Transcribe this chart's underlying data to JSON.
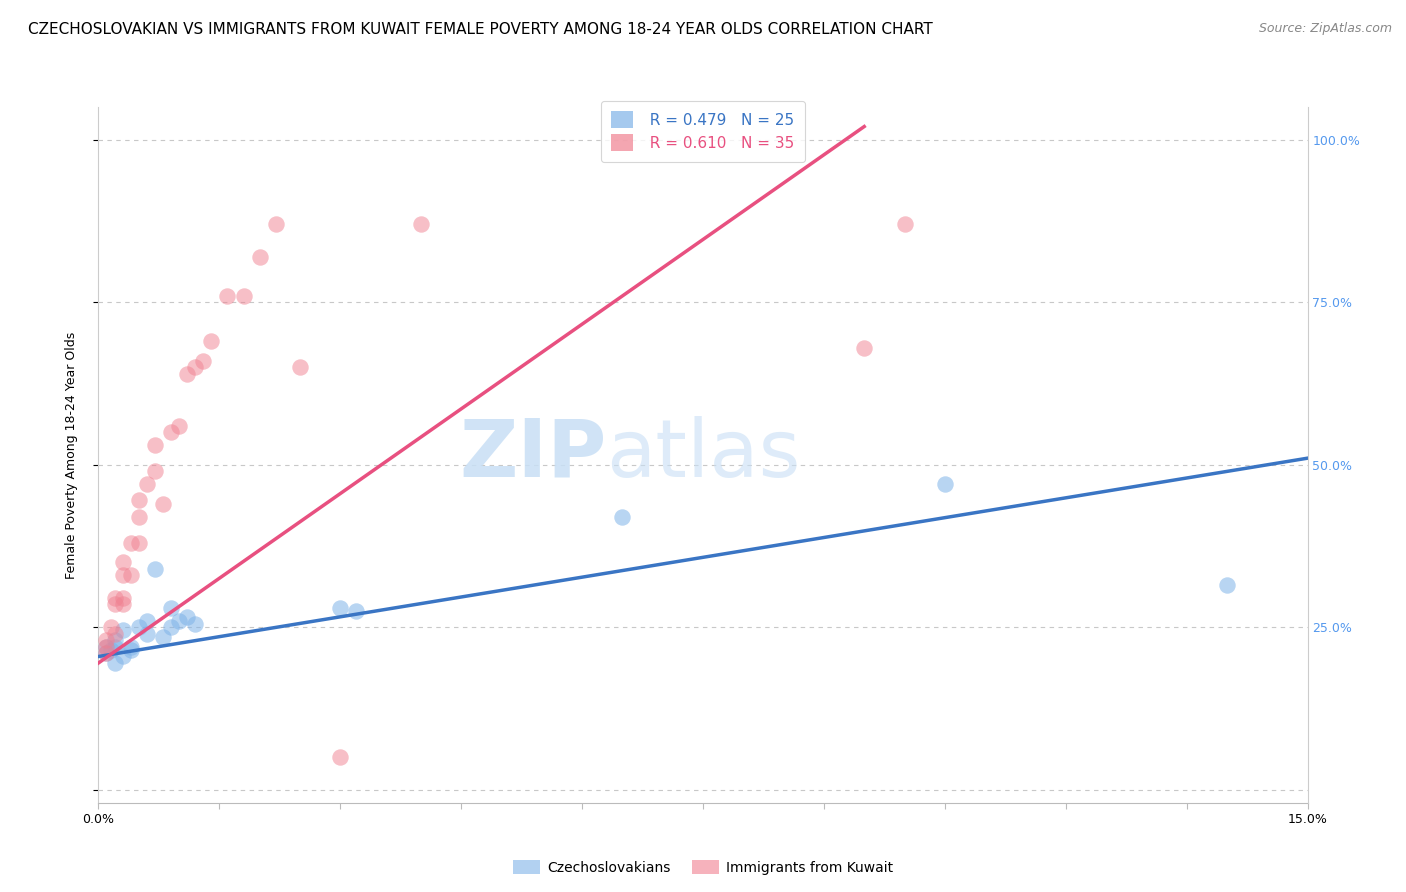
{
  "title": "CZECHOSLOVAKIAN VS IMMIGRANTS FROM KUWAIT FEMALE POVERTY AMONG 18-24 YEAR OLDS CORRELATION CHART",
  "source_text": "Source: ZipAtlas.com",
  "ylabel": "Female Poverty Among 18-24 Year Olds",
  "xlim": [
    0,
    0.15
  ],
  "ylim": [
    -0.02,
    1.05
  ],
  "xticks": [
    0.0,
    0.015,
    0.03,
    0.045,
    0.06,
    0.075,
    0.09,
    0.105,
    0.12,
    0.135,
    0.15
  ],
  "xtick_labels_shown": {
    "0.0": "0.0%",
    "0.15": "15.0%"
  },
  "yticks": [
    0.0,
    0.25,
    0.5,
    0.75,
    1.0
  ],
  "right_ytick_labels": [
    "25.0%",
    "50.0%",
    "75.0%",
    "100.0%"
  ],
  "grid_color": "#c8c8c8",
  "background_color": "#ffffff",
  "watermark_zip": "ZIP",
  "watermark_atlas": "atlas",
  "blue_color": "#7fb3e8",
  "pink_color": "#f08090",
  "blue_line_color": "#3a75c4",
  "pink_line_color": "#e85080",
  "blue_R": "R = 0.479",
  "blue_N": "N = 25",
  "pink_R": "R = 0.610",
  "pink_N": "N = 35",
  "legend_label_blue": "Czechoslovakians",
  "legend_label_pink": "Immigrants from Kuwait",
  "blue_scatter_x": [
    0.001,
    0.001,
    0.0015,
    0.002,
    0.002,
    0.002,
    0.003,
    0.003,
    0.004,
    0.004,
    0.005,
    0.006,
    0.006,
    0.007,
    0.008,
    0.009,
    0.009,
    0.01,
    0.011,
    0.012,
    0.03,
    0.032,
    0.065,
    0.105,
    0.14
  ],
  "blue_scatter_y": [
    0.21,
    0.22,
    0.215,
    0.195,
    0.22,
    0.23,
    0.205,
    0.245,
    0.215,
    0.22,
    0.25,
    0.24,
    0.26,
    0.34,
    0.235,
    0.25,
    0.28,
    0.26,
    0.265,
    0.255,
    0.28,
    0.275,
    0.42,
    0.47,
    0.315
  ],
  "pink_scatter_x": [
    0.001,
    0.001,
    0.001,
    0.0015,
    0.002,
    0.002,
    0.002,
    0.003,
    0.003,
    0.003,
    0.003,
    0.004,
    0.004,
    0.005,
    0.005,
    0.005,
    0.006,
    0.007,
    0.007,
    0.008,
    0.009,
    0.01,
    0.011,
    0.012,
    0.013,
    0.014,
    0.016,
    0.018,
    0.02,
    0.022,
    0.025,
    0.03,
    0.04,
    0.095,
    0.1
  ],
  "pink_scatter_y": [
    0.21,
    0.22,
    0.23,
    0.25,
    0.24,
    0.285,
    0.295,
    0.285,
    0.295,
    0.33,
    0.35,
    0.33,
    0.38,
    0.38,
    0.42,
    0.445,
    0.47,
    0.49,
    0.53,
    0.44,
    0.55,
    0.56,
    0.64,
    0.65,
    0.66,
    0.69,
    0.76,
    0.76,
    0.82,
    0.87,
    0.65,
    0.05,
    0.87,
    0.68,
    0.87
  ],
  "blue_line_x": [
    0.0,
    0.15
  ],
  "blue_line_y": [
    0.205,
    0.51
  ],
  "pink_line_x": [
    0.0,
    0.095
  ],
  "pink_line_y": [
    0.195,
    1.02
  ],
  "title_fontsize": 11,
  "axis_label_fontsize": 9,
  "tick_fontsize": 9,
  "legend_fontsize": 11,
  "source_fontsize": 9,
  "right_tick_color": "#5599ee"
}
